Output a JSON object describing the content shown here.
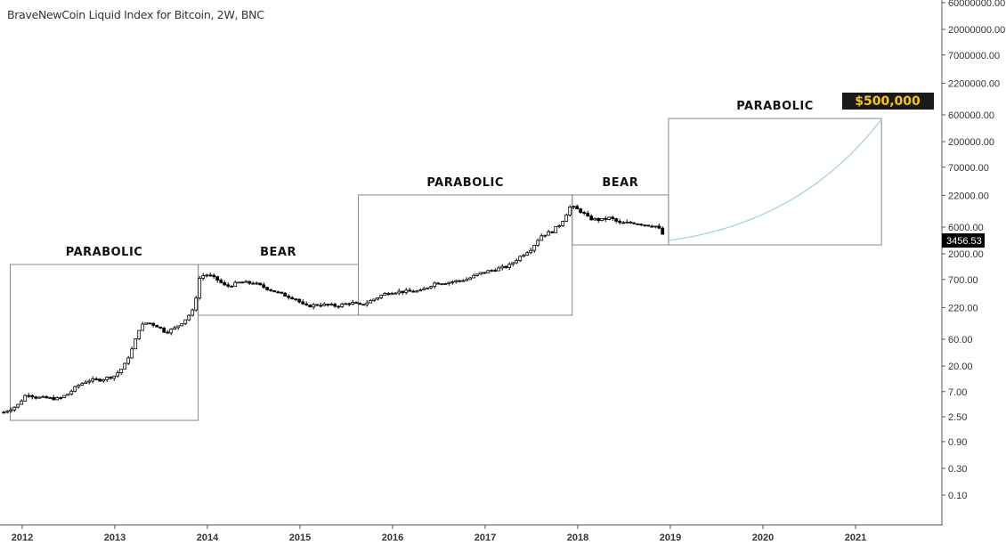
{
  "header": {
    "title": "BraveNewCoin Liquid Index for Bitcoin, 2W, BNC"
  },
  "colors": {
    "candle_up": "#ffffff",
    "candle_down": "#000000",
    "box_border": "#8a8a8a",
    "curve": "#9fd3d0",
    "label_bg": "#1a1a1a",
    "label_text": "#f5c518"
  },
  "chart_data": {
    "type": "candlestick",
    "title": "BraveNewCoin Liquid Index for Bitcoin, 2W, BNC",
    "y_scale": "log",
    "ylim": [
      0.05,
      80000000
    ],
    "xlim": [
      2011.78,
      2022.0
    ],
    "grid": false,
    "y_ticks": [
      "60000000.00",
      "20000000.00",
      "7000000.00",
      "2200000.00",
      "600000.00",
      "200000.00",
      "70000.00",
      "22000.00",
      "6000.00",
      "2000.00",
      "700.00",
      "220.00",
      "60.00",
      "20.00",
      "7.00",
      "2.50",
      "0.90",
      "0.30",
      "0.10"
    ],
    "x_ticks": [
      "2012",
      "2013",
      "2014",
      "2015",
      "2016",
      "2017",
      "2018",
      "2019",
      "2020",
      "2021"
    ],
    "last_price": "3456.53",
    "close_keypoints": [
      [
        2011.8,
        3
      ],
      [
        2011.95,
        4
      ],
      [
        2012.05,
        6.5
      ],
      [
        2012.15,
        5.5
      ],
      [
        2012.4,
        5.2
      ],
      [
        2012.5,
        6.5
      ],
      [
        2012.6,
        9
      ],
      [
        2012.7,
        11
      ],
      [
        2012.85,
        11.5
      ],
      [
        2013.0,
        13.5
      ],
      [
        2013.1,
        20
      ],
      [
        2013.2,
        45
      ],
      [
        2013.27,
        100
      ],
      [
        2013.35,
        120
      ],
      [
        2013.45,
        105
      ],
      [
        2013.55,
        80
      ],
      [
        2013.65,
        95
      ],
      [
        2013.75,
        130
      ],
      [
        2013.85,
        200
      ],
      [
        2013.92,
        800
      ],
      [
        2014.0,
        850
      ],
      [
        2014.1,
        700
      ],
      [
        2014.2,
        520
      ],
      [
        2014.35,
        620
      ],
      [
        2014.5,
        600
      ],
      [
        2014.65,
        480
      ],
      [
        2014.8,
        380
      ],
      [
        2014.95,
        320
      ],
      [
        2015.05,
        230
      ],
      [
        2015.2,
        250
      ],
      [
        2015.4,
        235
      ],
      [
        2015.55,
        270
      ],
      [
        2015.65,
        240
      ],
      [
        2015.78,
        300
      ],
      [
        2015.9,
        380
      ],
      [
        2016.0,
        420
      ],
      [
        2016.3,
        430
      ],
      [
        2016.45,
        600
      ],
      [
        2016.6,
        620
      ],
      [
        2016.8,
        700
      ],
      [
        2016.95,
        900
      ],
      [
        2017.1,
        1050
      ],
      [
        2017.25,
        1200
      ],
      [
        2017.38,
        1800
      ],
      [
        2017.5,
        2500
      ],
      [
        2017.6,
        4200
      ],
      [
        2017.72,
        5000
      ],
      [
        2017.82,
        7000
      ],
      [
        2017.92,
        14000
      ],
      [
        2017.97,
        13000
      ],
      [
        2018.05,
        11000
      ],
      [
        2018.12,
        8500
      ],
      [
        2018.25,
        8000
      ],
      [
        2018.35,
        8800
      ],
      [
        2018.45,
        7000
      ],
      [
        2018.6,
        7200
      ],
      [
        2018.75,
        6500
      ],
      [
        2018.85,
        6200
      ],
      [
        2018.9,
        5000
      ],
      [
        2018.95,
        3456.53
      ]
    ],
    "annotations": [
      {
        "label": "PARABOLIC",
        "x0": 2011.87,
        "x1": 2013.9,
        "y0": 2.15,
        "y1": 1290
      },
      {
        "label": "BEAR",
        "x0": 2013.9,
        "x1": 2015.63,
        "y0": 161,
        "y1": 1290
      },
      {
        "label": "PARABOLIC",
        "x0": 2015.63,
        "x1": 2017.94,
        "y0": 161,
        "y1": 22400
      },
      {
        "label": "BEAR",
        "x0": 2017.94,
        "x1": 2018.98,
        "y0": 2880,
        "y1": 22400
      },
      {
        "label": "PARABOLIC",
        "x0": 2018.98,
        "x1": 2021.28,
        "y0": 2880,
        "y1": 516000
      }
    ],
    "projection": {
      "from": [
        2018.98,
        3456.53
      ],
      "to": [
        2021.28,
        500000
      ],
      "label": "$500,000"
    }
  }
}
